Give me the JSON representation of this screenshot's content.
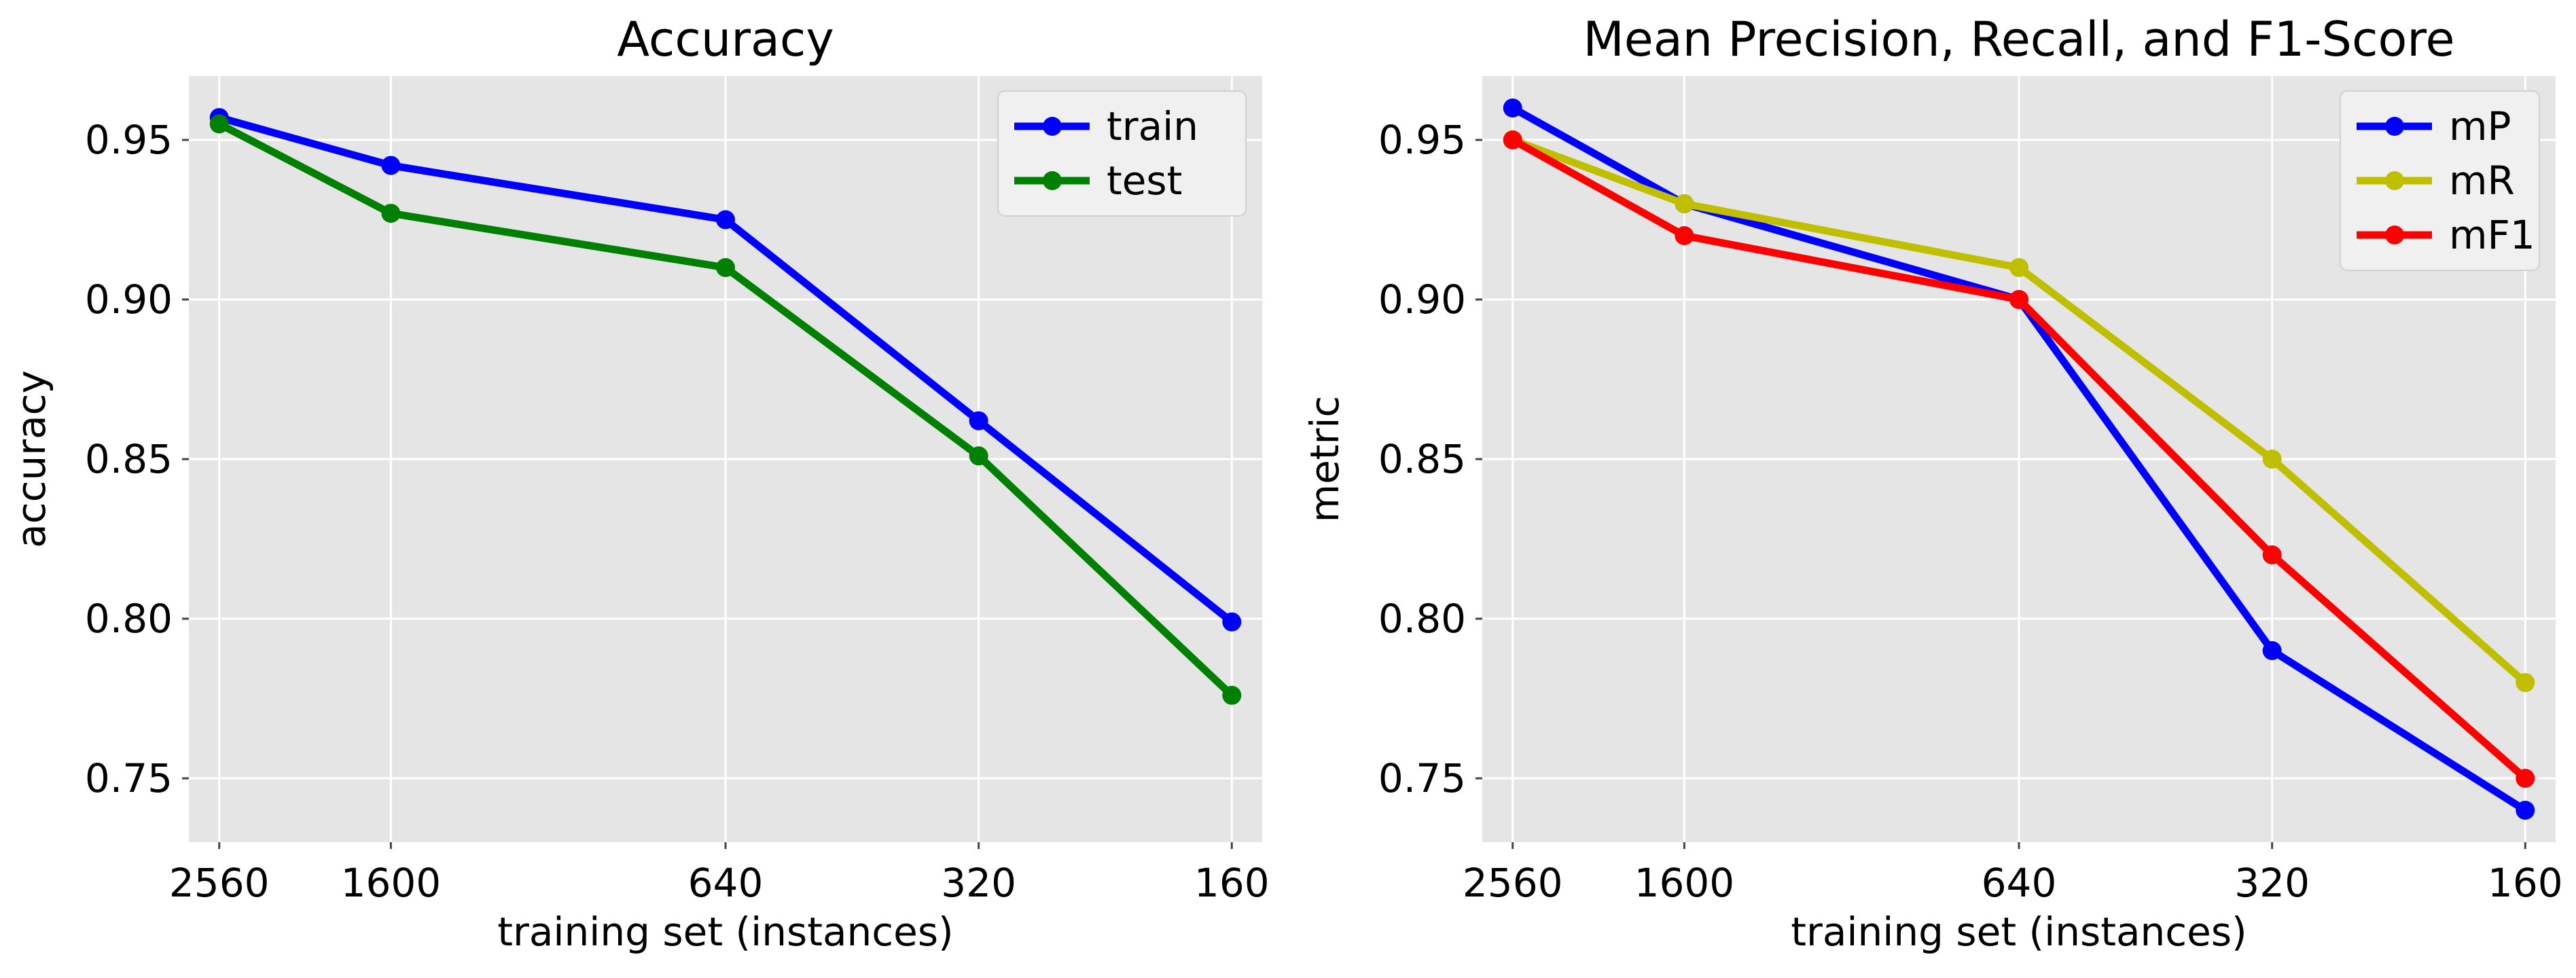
{
  "chart_data": [
    {
      "type": "line",
      "title": "Accuracy",
      "xlabel": "training set (instances)",
      "ylabel": "accuracy",
      "x": [
        2560,
        1600,
        640,
        320,
        160
      ],
      "x_tick_labels": [
        "2560",
        "1600",
        "640",
        "320",
        "160"
      ],
      "x_scale": "log, reversed",
      "y_ticks": [
        "0.75",
        "0.80",
        "0.85",
        "0.90",
        "0.95"
      ],
      "ylim": [
        0.73,
        0.97
      ],
      "grid": true,
      "legend_position": "upper right",
      "series": [
        {
          "name": "train",
          "color": "#0000ff",
          "values": [
            0.957,
            0.942,
            0.925,
            0.862,
            0.799
          ]
        },
        {
          "name": "test",
          "color": "#008000",
          "values": [
            0.955,
            0.927,
            0.91,
            0.851,
            0.776
          ]
        }
      ]
    },
    {
      "type": "line",
      "title": "Mean Precision, Recall, and F1-Score",
      "xlabel": "training set (instances)",
      "ylabel": "metric",
      "x": [
        2560,
        1600,
        640,
        320,
        160
      ],
      "x_tick_labels": [
        "2560",
        "1600",
        "640",
        "320",
        "160"
      ],
      "x_scale": "log, reversed",
      "y_ticks": [
        "0.75",
        "0.80",
        "0.85",
        "0.90",
        "0.95"
      ],
      "ylim": [
        0.73,
        0.97
      ],
      "grid": true,
      "legend_position": "upper right",
      "series": [
        {
          "name": "mP",
          "color": "#0000ff",
          "values": [
            0.96,
            0.93,
            0.9,
            0.79,
            0.74
          ]
        },
        {
          "name": "mR",
          "color": "#bfbf00",
          "values": [
            0.95,
            0.93,
            0.91,
            0.85,
            0.78
          ]
        },
        {
          "name": "mF1",
          "color": "#ff0000",
          "values": [
            0.95,
            0.92,
            0.9,
            0.82,
            0.75
          ]
        }
      ]
    }
  ],
  "style": {
    "plot_background": "#e5e5e5",
    "grid_color": "#ffffff",
    "legend_background": "#f0f0f0"
  }
}
